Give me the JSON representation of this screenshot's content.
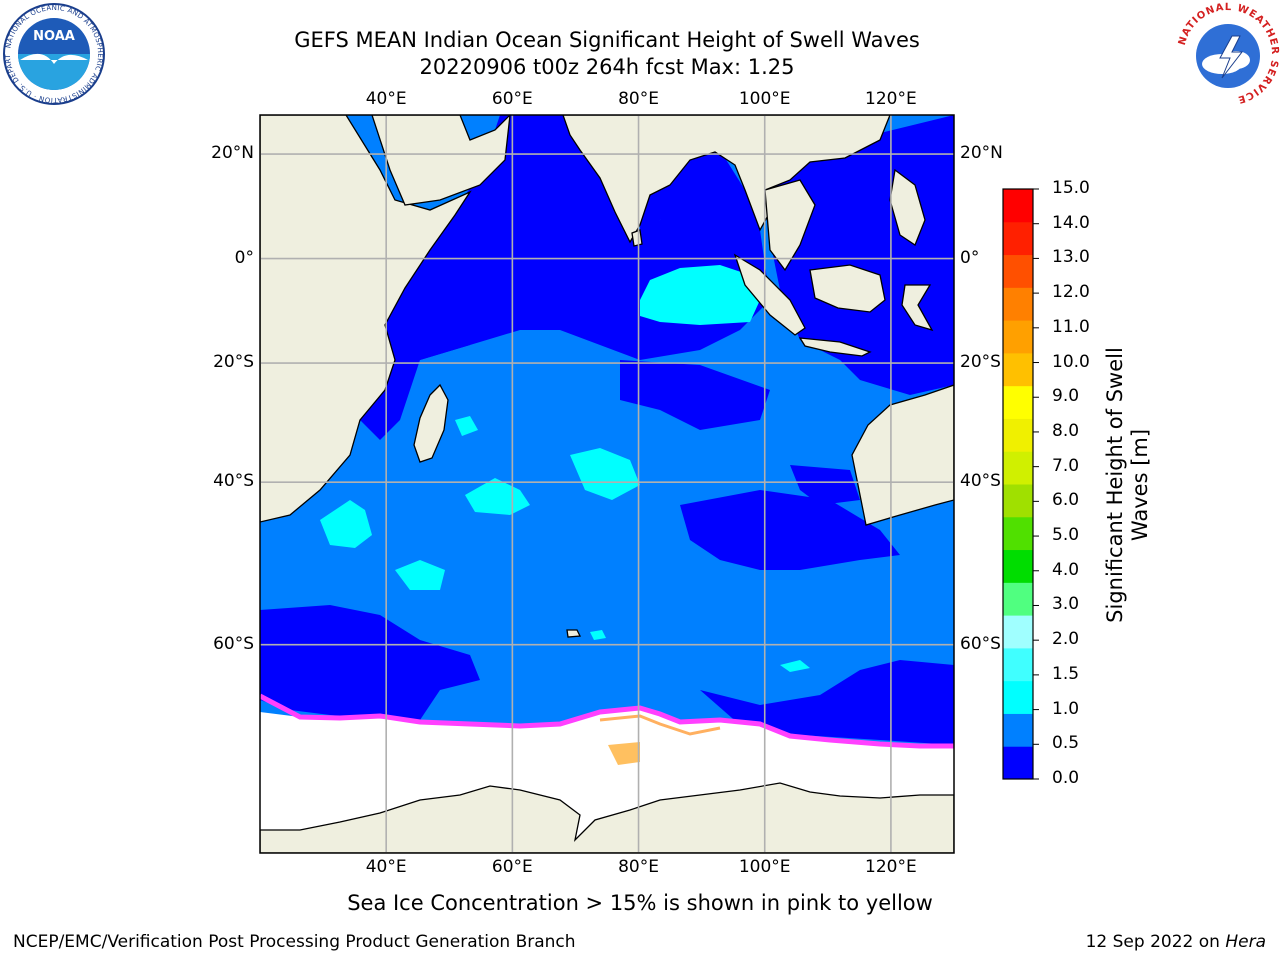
{
  "title": {
    "line1": "GEFS MEAN Indian Ocean Significant Height of Swell Waves",
    "line2": "20220906 t00z 264h fcst   Max: 1.25"
  },
  "map": {
    "lon_ticks": [
      "40°E",
      "60°E",
      "80°E",
      "100°E",
      "120°E"
    ],
    "lat_ticks": [
      "20°N",
      "0°",
      "20°S",
      "40°S",
      "60°S"
    ],
    "lon_range": [
      20,
      130
    ],
    "lat_range": [
      -75,
      27
    ],
    "colors": {
      "land": "#efefdf",
      "sea_ice": "#ffffff",
      "band_0_0p5": "#0000ff",
      "band_0p5_1": "#0080ff",
      "band_1_1p5": "#00ffff"
    },
    "ice_edge_colors": [
      "#ff40ff",
      "#ff8080",
      "#ffb040",
      "#ffd060"
    ]
  },
  "colorbar": {
    "title": "Significant Height of Swell Waves [m]",
    "title_line1": "Significant Height of Swell",
    "title_line2": "Waves [m]",
    "labels": [
      "15.0",
      "14.0",
      "13.0",
      "12.0",
      "11.0",
      "10.0",
      "9.0",
      "8.0",
      "7.0",
      "6.0",
      "5.0",
      "4.0",
      "3.0",
      "2.0",
      "1.5",
      "1.0",
      "0.5",
      "0.0"
    ],
    "colors": [
      "#0000ff",
      "#0080ff",
      "#00ffff",
      "#40ffff",
      "#a0ffff",
      "#50ff80",
      "#00dd00",
      "#50e000",
      "#a0e000",
      "#d0f000",
      "#f0f000",
      "#ffff00",
      "#ffc000",
      "#ffa000",
      "#ff8000",
      "#ff5000",
      "#ff2000",
      "#ff0000"
    ]
  },
  "logos": {
    "noaa_text": "NOAA",
    "noaa_ring_text": "NATIONAL OCEANIC AND ATMOSPHERIC ADMINISTRATION · U.S. DEPARTMENT OF COMMERCE",
    "nws_ring_text": "NATIONAL WEATHER SERVICE"
  },
  "caption": "Sea Ice Concentration > 15% is shown in pink to yellow",
  "footer": {
    "left": "NCEP/EMC/Verification Post Processing Product Generation Branch",
    "date": "12 Sep 2022 on ",
    "host": "Hera"
  }
}
